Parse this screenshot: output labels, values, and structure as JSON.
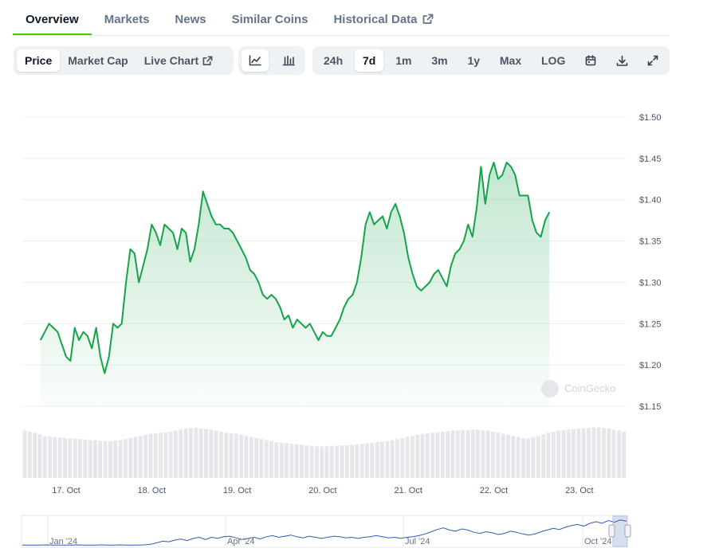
{
  "tabs": [
    {
      "label": "Overview",
      "active": true
    },
    {
      "label": "Markets"
    },
    {
      "label": "News"
    },
    {
      "label": "Similar Coins"
    },
    {
      "label": "Historical Data",
      "external": true
    }
  ],
  "toolbar": {
    "metrics": [
      {
        "label": "Price",
        "active": true
      },
      {
        "label": "Market Cap"
      },
      {
        "label": "Live Chart",
        "external": true
      }
    ],
    "chart_styles": [
      {
        "icon": "line-chart-icon",
        "active": true
      },
      {
        "icon": "candlestick-chart-icon"
      }
    ],
    "ranges": [
      {
        "label": "24h"
      },
      {
        "label": "7d",
        "active": true
      },
      {
        "label": "1m"
      },
      {
        "label": "3m"
      },
      {
        "label": "1y"
      },
      {
        "label": "Max"
      },
      {
        "label": "LOG"
      }
    ],
    "actions": [
      {
        "icon": "calendar-icon"
      },
      {
        "icon": "download-icon"
      },
      {
        "icon": "expand-icon"
      }
    ]
  },
  "watermark": "CoinGecko",
  "colors": {
    "line": "#16a34a",
    "accent": "#4bcc00",
    "volume": "#e5e7eb",
    "navigator": "#335cad"
  },
  "chart_data": {
    "type": "area",
    "title": "",
    "xlabel": "",
    "ylabel": "",
    "x_ticks": [
      "17. Oct",
      "18. Oct",
      "19. Oct",
      "20. Oct",
      "21. Oct",
      "22. Oct",
      "23. Oct"
    ],
    "y_ticks": [
      "$1.50",
      "$1.45",
      "$1.40",
      "$1.35",
      "$1.30",
      "$1.25",
      "$1.20",
      "$1.15"
    ],
    "ylim": [
      1.15,
      1.5
    ],
    "x_start_day": 16.7,
    "x_step_days": 0.05,
    "price": [
      1.23,
      1.24,
      1.25,
      1.245,
      1.24,
      1.225,
      1.21,
      1.205,
      1.245,
      1.23,
      1.24,
      1.235,
      1.22,
      1.245,
      1.21,
      1.19,
      1.21,
      1.25,
      1.245,
      1.25,
      1.3,
      1.34,
      1.335,
      1.3,
      1.32,
      1.34,
      1.37,
      1.36,
      1.345,
      1.37,
      1.365,
      1.36,
      1.34,
      1.365,
      1.36,
      1.325,
      1.34,
      1.37,
      1.41,
      1.395,
      1.38,
      1.37,
      1.37,
      1.365,
      1.365,
      1.36,
      1.35,
      1.34,
      1.33,
      1.315,
      1.31,
      1.3,
      1.285,
      1.28,
      1.285,
      1.28,
      1.27,
      1.255,
      1.26,
      1.245,
      1.255,
      1.25,
      1.245,
      1.25,
      1.24,
      1.23,
      1.24,
      1.235,
      1.235,
      1.245,
      1.255,
      1.27,
      1.28,
      1.285,
      1.3,
      1.33,
      1.37,
      1.385,
      1.37,
      1.375,
      1.38,
      1.365,
      1.385,
      1.395,
      1.38,
      1.36,
      1.33,
      1.31,
      1.295,
      1.29,
      1.295,
      1.3,
      1.31,
      1.315,
      1.305,
      1.295,
      1.32,
      1.335,
      1.34,
      1.35,
      1.37,
      1.355,
      1.39,
      1.44,
      1.395,
      1.43,
      1.445,
      1.425,
      1.43,
      1.445,
      1.44,
      1.43,
      1.405,
      1.405,
      1.405,
      1.375,
      1.36,
      1.355,
      1.375,
      1.385
    ],
    "volume": [
      0.9,
      0.88,
      0.86,
      0.83,
      0.8,
      0.79,
      0.78,
      0.77,
      0.76,
      0.75,
      0.75,
      0.74,
      0.73,
      0.72,
      0.72,
      0.71,
      0.7,
      0.7,
      0.71,
      0.72,
      0.74,
      0.76,
      0.78,
      0.8,
      0.82,
      0.84,
      0.85,
      0.86,
      0.87,
      0.88,
      0.9,
      0.92,
      0.94,
      0.95,
      0.95,
      0.94,
      0.93,
      0.92,
      0.9,
      0.88,
      0.86,
      0.85,
      0.84,
      0.82,
      0.8,
      0.78,
      0.76,
      0.74,
      0.72,
      0.7,
      0.68,
      0.67,
      0.66,
      0.65,
      0.64,
      0.63,
      0.62,
      0.61,
      0.6,
      0.6,
      0.6,
      0.61,
      0.61,
      0.62,
      0.62,
      0.63,
      0.64,
      0.65,
      0.66,
      0.67,
      0.68,
      0.69,
      0.7,
      0.72,
      0.74,
      0.76,
      0.78,
      0.8,
      0.82,
      0.84,
      0.85,
      0.86,
      0.87,
      0.88,
      0.89,
      0.9,
      0.9,
      0.91,
      0.91,
      0.92,
      0.92,
      0.91,
      0.9,
      0.88,
      0.86,
      0.84,
      0.82,
      0.8,
      0.78,
      0.76,
      0.75,
      0.77,
      0.8,
      0.83,
      0.86,
      0.88,
      0.9,
      0.91,
      0.92,
      0.93,
      0.94,
      0.95,
      0.95,
      0.96,
      0.96,
      0.95,
      0.94,
      0.92,
      0.9,
      0.88
    ],
    "navigator": {
      "labels": [
        "Jan '24",
        "Apr '24",
        "Jul '24",
        "Oct '24"
      ],
      "values": [
        0.02,
        0.02,
        0.02,
        0.02,
        0.03,
        0.02,
        0.02,
        0.02,
        0.02,
        0.03,
        0.02,
        0.02,
        0.02,
        0.03,
        0.02,
        0.02,
        0.03,
        0.02,
        0.02,
        0.02,
        0.03,
        0.05,
        0.1,
        0.16,
        0.14,
        0.2,
        0.24,
        0.18,
        0.26,
        0.3,
        0.22,
        0.3,
        0.26,
        0.32,
        0.34,
        0.28,
        0.22,
        0.26,
        0.3,
        0.24,
        0.32,
        0.36,
        0.3,
        0.34,
        0.38,
        0.32,
        0.28,
        0.34,
        0.3,
        0.26,
        0.3,
        0.34,
        0.32,
        0.28,
        0.3,
        0.26,
        0.3,
        0.32,
        0.36,
        0.32,
        0.28,
        0.3,
        0.26,
        0.3,
        0.32,
        0.36,
        0.42,
        0.5,
        0.58,
        0.64,
        0.56,
        0.52,
        0.6,
        0.56,
        0.48,
        0.44,
        0.5,
        0.46,
        0.4,
        0.44,
        0.52,
        0.48,
        0.42,
        0.38,
        0.42,
        0.5,
        0.56,
        0.62,
        0.58,
        0.66,
        0.72,
        0.76,
        0.7,
        0.8,
        0.86,
        0.8,
        0.9,
        0.84,
        0.92,
        0.88
      ]
    }
  }
}
